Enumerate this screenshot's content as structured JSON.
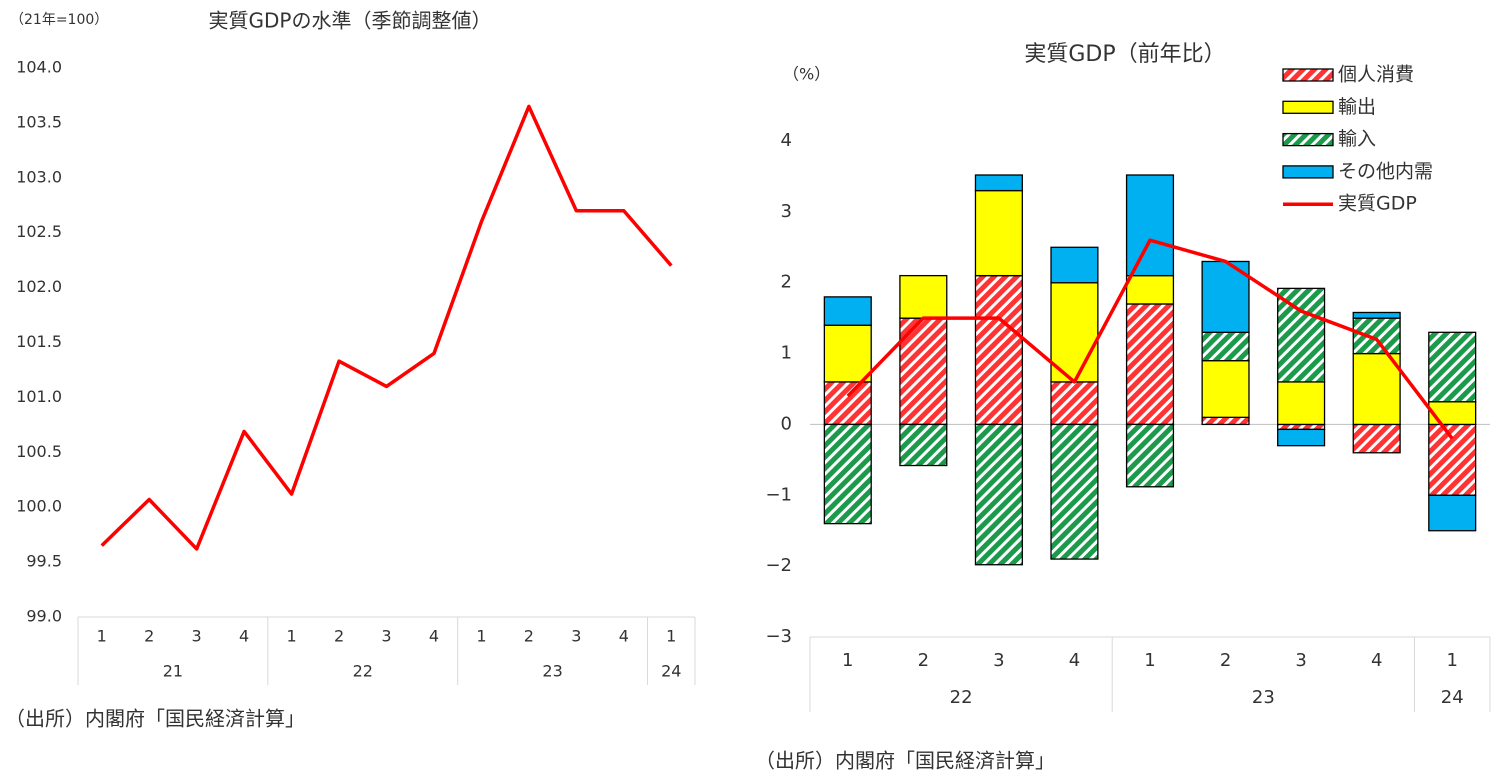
{
  "chart_data": [
    {
      "type": "line",
      "title": "実質GDPの水準（季節調整値）",
      "unit_label": "（21年=100）",
      "categories": [
        "1",
        "2",
        "3",
        "4",
        "1",
        "2",
        "3",
        "4",
        "1",
        "2",
        "3",
        "4",
        "1"
      ],
      "category_groups": [
        "21",
        "21",
        "21",
        "21",
        "22",
        "22",
        "22",
        "22",
        "23",
        "23",
        "23",
        "23",
        "24"
      ],
      "values": [
        99.65,
        100.07,
        99.62,
        100.69,
        100.12,
        101.33,
        101.1,
        101.4,
        102.6,
        103.65,
        102.7,
        102.7,
        102.2
      ],
      "color": "#ff0000",
      "ylim": [
        99,
        104
      ],
      "yticks": [
        {
          "value": 99,
          "label": "99.0"
        },
        {
          "value": 99.5,
          "label": "99.5"
        },
        {
          "value": 100,
          "label": "100.0"
        },
        {
          "value": 100.5,
          "label": "100.5"
        },
        {
          "value": 101,
          "label": "101.0"
        },
        {
          "value": 101.5,
          "label": "101.5"
        },
        {
          "value": 102,
          "label": "102.0"
        },
        {
          "value": 102.5,
          "label": "102.5"
        },
        {
          "value": 103,
          "label": "103.0"
        },
        {
          "value": 103.5,
          "label": "103.5"
        },
        {
          "value": 104,
          "label": "104.0"
        }
      ],
      "source": "（出所）内閣府「国民経済計算」"
    },
    {
      "type": "bar",
      "stacked": true,
      "title": "実質GDP（前年比）",
      "unit_label": "（%）",
      "categories": [
        "1",
        "2",
        "3",
        "4",
        "1",
        "2",
        "3",
        "4",
        "1"
      ],
      "category_groups": [
        "22",
        "22",
        "22",
        "22",
        "23",
        "23",
        "23",
        "23",
        "24"
      ],
      "series": [
        {
          "name": "個人消費",
          "color": "#ff3333",
          "pattern": "hatch",
          "values": [
            0.6,
            1.5,
            2.1,
            0.6,
            1.7,
            0.1,
            -0.07,
            -0.4,
            -1.0
          ]
        },
        {
          "name": "輸出",
          "color": "#ffff00",
          "values": [
            0.8,
            0.6,
            1.2,
            1.4,
            0.4,
            0.8,
            0.6,
            1.0,
            0.32
          ]
        },
        {
          "name": "輸入",
          "color": "#1a9a4a",
          "pattern": "hatch",
          "values": [
            -1.4,
            -0.58,
            -1.98,
            -1.9,
            -0.88,
            0.4,
            1.32,
            0.5,
            0.98
          ]
        },
        {
          "name": "その他内需",
          "color": "#00b0f0",
          "values": [
            0.4,
            0,
            0.22,
            0.5,
            1.42,
            1.0,
            -0.23,
            0.08,
            -0.5
          ]
        },
        {
          "name": "実質GDP",
          "color": "#ff0000",
          "type": "line",
          "values": [
            0.4,
            1.5,
            1.5,
            0.6,
            2.6,
            2.3,
            1.6,
            1.2,
            -0.2
          ]
        }
      ],
      "ylim": [
        -3,
        4
      ],
      "yticks": [
        {
          "value": -3,
          "label": "−3"
        },
        {
          "value": -2,
          "label": "−2"
        },
        {
          "value": -1,
          "label": "−1"
        },
        0,
        1,
        2,
        3,
        4
      ],
      "legend": "upper right",
      "source": "（出所）内閣府「国民経済計算」"
    }
  ]
}
